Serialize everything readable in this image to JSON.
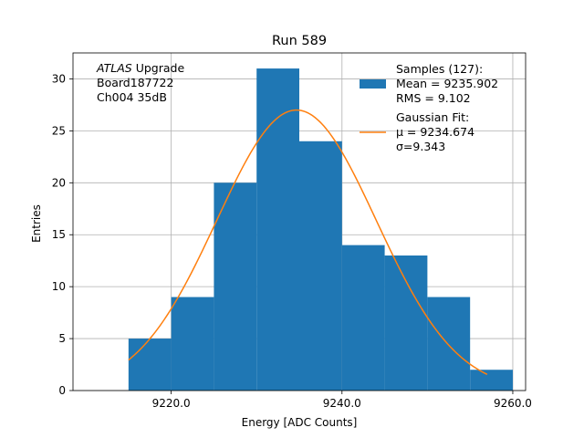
{
  "chart_data": {
    "type": "bar",
    "title": "Run 589",
    "xlabel": "Energy [ADC Counts]",
    "ylabel": "Entries",
    "xlim": [
      9208.5,
      9261.5
    ],
    "ylim": [
      0,
      32.5
    ],
    "xticks": [
      9220.0,
      9240.0,
      9260.0
    ],
    "xtick_labels": [
      "9220.0",
      "9240.0",
      "9260.0"
    ],
    "yticks": [
      0,
      5,
      10,
      15,
      20,
      25,
      30
    ],
    "ytick_labels": [
      "0",
      "5",
      "10",
      "15",
      "20",
      "25",
      "30"
    ],
    "grid": true,
    "histogram": {
      "bin_edges": [
        9215,
        9220,
        9225,
        9230,
        9235,
        9240,
        9245,
        9250,
        9255,
        9260
      ],
      "counts": [
        5,
        9,
        20,
        31,
        24,
        14,
        13,
        9,
        2
      ],
      "color": "#1f77b4"
    },
    "gaussian_fit": {
      "amplitude": 27.0,
      "mu": 9234.674,
      "sigma": 9.343,
      "x_range": [
        9215,
        9257
      ],
      "color": "#ff7f0e"
    },
    "annotation": {
      "lines": [
        {
          "italic": "ATLAS",
          "text": " Upgrade"
        },
        {
          "italic": "",
          "text": " Board187722"
        },
        {
          "italic": "",
          "text": " Ch004 35dB"
        }
      ]
    },
    "legend": {
      "position": "top-right",
      "entries": [
        {
          "kind": "patch",
          "color": "#1f77b4",
          "lines": [
            "Samples (127):",
            " Mean = 9235.902",
            " RMS = 9.102"
          ]
        },
        {
          "kind": "line",
          "color": "#ff7f0e",
          "lines": [
            "Gaussian Fit:",
            " μ = 9234.674",
            " σ=9.343"
          ]
        }
      ]
    }
  }
}
